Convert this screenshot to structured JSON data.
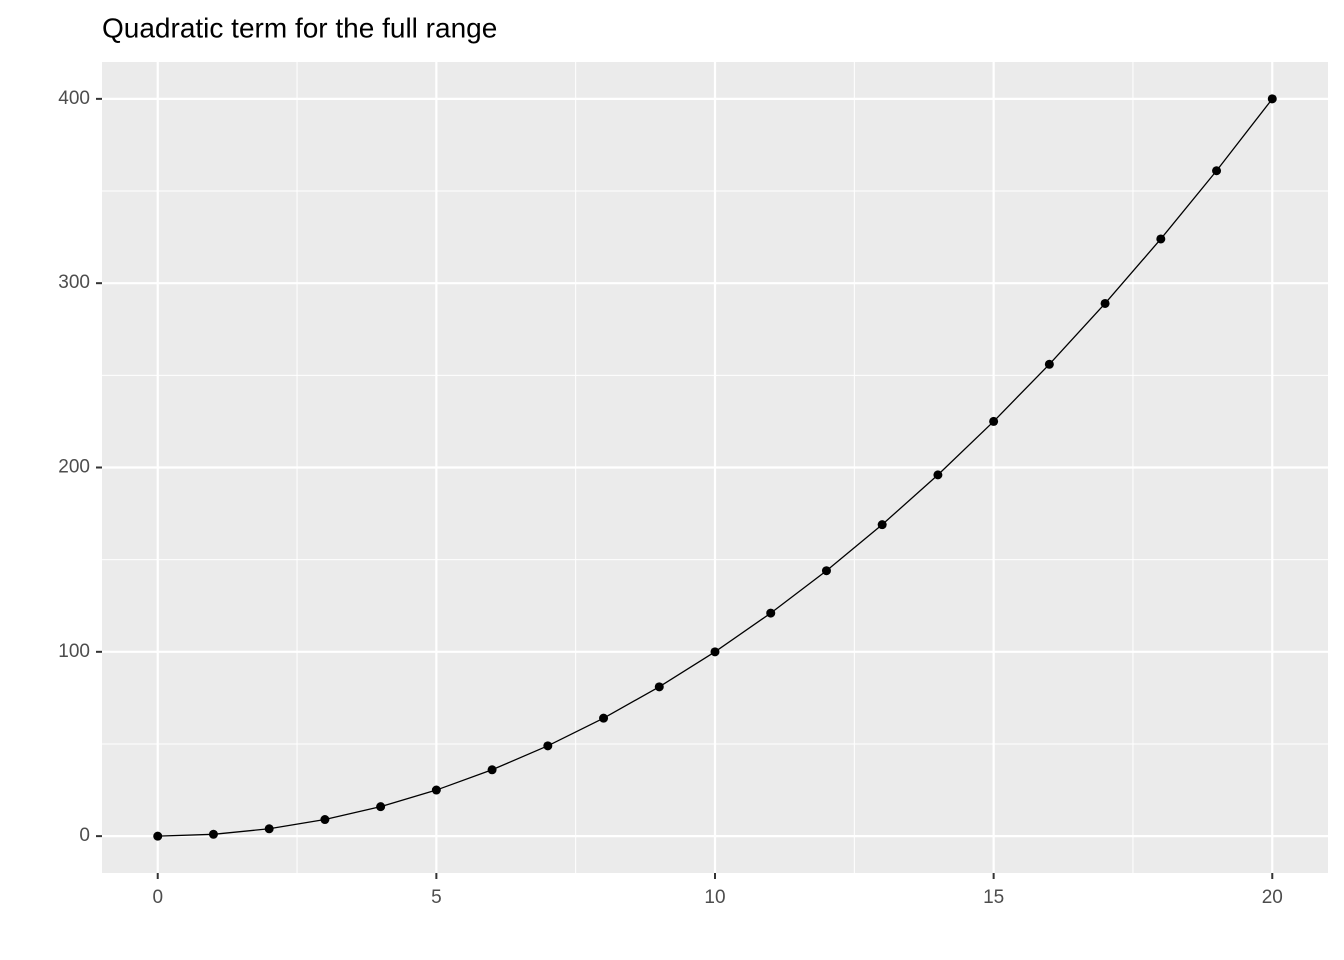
{
  "chart_data": {
    "type": "line",
    "title": "Quadratic term for the full range",
    "x": [
      0,
      1,
      2,
      3,
      4,
      5,
      6,
      7,
      8,
      9,
      10,
      11,
      12,
      13,
      14,
      15,
      16,
      17,
      18,
      19,
      20
    ],
    "values": [
      0,
      1,
      4,
      9,
      16,
      25,
      36,
      49,
      64,
      81,
      100,
      121,
      144,
      169,
      196,
      225,
      256,
      289,
      324,
      361,
      400
    ],
    "color": "#000000",
    "markers": true,
    "xlim": [
      -1,
      21
    ],
    "xticks": [
      0,
      5,
      10,
      15,
      20
    ],
    "x_minor_ticks": [
      2.5,
      7.5,
      12.5,
      17.5
    ],
    "ylim": [
      -20,
      420
    ],
    "yticks": [
      0,
      100,
      200,
      300,
      400
    ],
    "y_minor_ticks": [
      50,
      150,
      250,
      350
    ],
    "grid": true
  }
}
